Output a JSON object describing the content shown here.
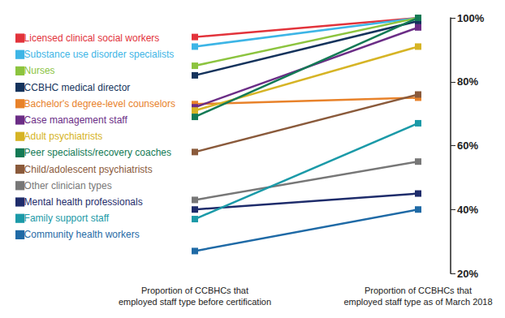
{
  "chart_data": {
    "type": "line",
    "categories": [
      "Proportion of CCBHCs that\nemployed staff type before certification",
      "Proportion of CCBHCs that\nemployed staff type as of March 2018"
    ],
    "series": [
      {
        "name": "Licensed clinical social workers",
        "color": "#e2333b",
        "values": [
          94,
          100
        ]
      },
      {
        "name": "Substance use disorder specialists",
        "color": "#3db5e6",
        "values": [
          91,
          100
        ]
      },
      {
        "name": "Nurses",
        "color": "#8cc43f",
        "values": [
          85,
          100
        ]
      },
      {
        "name": "CCBHC medical director",
        "color": "#14335c",
        "values": [
          82,
          99
        ]
      },
      {
        "name": "Bachelor's degree-level counselors",
        "color": "#e8822a",
        "values": [
          73,
          75
        ]
      },
      {
        "name": "Case management staff",
        "color": "#6b2d86",
        "values": [
          72,
          97
        ]
      },
      {
        "name": "Adult psychiatrists",
        "color": "#d6b425",
        "values": [
          71,
          91
        ]
      },
      {
        "name": "Peer specialists/recovery coaches",
        "color": "#137a55",
        "values": [
          69,
          100
        ]
      },
      {
        "name": "Child/adolescent psychiatrists",
        "color": "#8a5a3b",
        "values": [
          58,
          76
        ]
      },
      {
        "name": "Other clinician types",
        "color": "#777777",
        "values": [
          43,
          55
        ]
      },
      {
        "name": "Mental health professionals",
        "color": "#1e2c6b",
        "values": [
          40,
          45
        ]
      },
      {
        "name": "Family support staff",
        "color": "#1b9aa8",
        "values": [
          37,
          67
        ]
      },
      {
        "name": "Community health workers",
        "color": "#1f6aa6",
        "values": [
          27,
          40
        ]
      }
    ],
    "ylim": [
      20,
      100
    ],
    "yticks": [
      {
        "value": 20,
        "label": "20%"
      },
      {
        "value": 40,
        "label": "40%"
      },
      {
        "value": 60,
        "label": "60%"
      },
      {
        "value": 80,
        "label": "80%"
      },
      {
        "value": 100,
        "label": "100%"
      }
    ],
    "marker": "square",
    "grid": false
  }
}
